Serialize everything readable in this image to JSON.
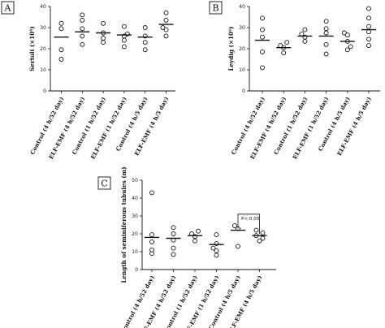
{
  "chart_data": [
    {
      "panel_label": "A",
      "type": "scatter",
      "ylabel": "Sertoli (×10⁶)",
      "ylim": [
        0,
        40
      ],
      "yticks": [
        0,
        10,
        20,
        30,
        40
      ],
      "categories": [
        "Control (4 h/52 day)",
        "ELF-EMF (4 h/52 day)",
        "Control (1 h/52 day)",
        "ELF-EMF (1 h/52 day)",
        "Control (4 h/5 day)",
        "ELF-EMF (4 h/5 day)"
      ],
      "groups": [
        {
          "points": [
            15,
            19.5,
            29.5,
            32
          ],
          "mean": 25.5
        },
        {
          "points": [
            22,
            26,
            29.5,
            33.5,
            36
          ],
          "mean": 28
        },
        {
          "points": [
            23,
            25,
            27.5,
            32
          ],
          "mean": 27.5
        },
        {
          "points": [
            21,
            24,
            26,
            27,
            30.5
          ],
          "mean": 26.5
        },
        {
          "points": [
            19.5,
            23,
            26,
            30
          ],
          "mean": 25.5
        },
        {
          "points": [
            26,
            29,
            30,
            33.5,
            37
          ],
          "mean": 31.5
        }
      ],
      "grid": false
    },
    {
      "panel_label": "B",
      "type": "scatter",
      "ylabel": "Leydig (×10⁶)",
      "ylim": [
        0,
        40
      ],
      "yticks": [
        0,
        10,
        20,
        30,
        40
      ],
      "categories": [
        "Control (4 h/52 day)",
        "ELF-EMF (4 h/52 day)",
        "Control (1 h/52 day)",
        "ELF-EMF (1 h/52 day)",
        "Control (4 h/5 day)",
        "ELF-EMF (4 h/5 day)"
      ],
      "groups": [
        {
          "points": [
            11,
            18.5,
            25.5,
            29,
            34.5
          ],
          "mean": 24
        },
        {
          "points": [
            18,
            20.5,
            21.5,
            23
          ],
          "mean": 20.5
        },
        {
          "points": [
            23.5,
            25.5,
            27,
            29
          ],
          "mean": 26
        },
        {
          "points": [
            17.5,
            22,
            27.5,
            29.5,
            33
          ],
          "mean": 26
        },
        {
          "points": [
            19.5,
            21,
            23.5,
            26.5,
            27.5
          ],
          "mean": 23.5
        },
        {
          "points": [
            21.5,
            24.5,
            28,
            30.5,
            34.5,
            39
          ],
          "mean": 29
        }
      ],
      "grid": false
    },
    {
      "panel_label": "C",
      "type": "scatter",
      "ylabel": "Length of seminiferous tubules (m)",
      "ylim": [
        0,
        50
      ],
      "yticks": [
        0,
        10,
        20,
        30,
        40,
        50
      ],
      "categories": [
        "Control (4 h/52 day)",
        "ELF-EMF (4 h/52 day)",
        "Control (1 h/52 day)",
        "ELF-EMF (1 h/52 day)",
        "Control (4 h/5 day)",
        "ELF-EMF (4 h/5 day)"
      ],
      "groups": [
        {
          "points": [
            9,
            11,
            15.5,
            19.5,
            43
          ],
          "mean": 18
        },
        {
          "points": [
            8.5,
            12,
            16.5,
            20,
            23.5
          ],
          "mean": 17.5
        },
        {
          "points": [
            16,
            18.5,
            20,
            21.5
          ],
          "mean": 19
        },
        {
          "points": [
            8,
            10.5,
            12,
            14.5,
            19.5
          ],
          "mean": 14
        },
        {
          "points": [
            13,
            23,
            24.5
          ],
          "mean": 22
        },
        {
          "points": [
            16,
            17.5,
            19,
            20.5,
            22
          ],
          "mean": 19
        }
      ],
      "significance": {
        "from_group": 4,
        "to_group": 5,
        "label": "P< 0.05",
        "y": 31
      },
      "grid": false
    }
  ]
}
